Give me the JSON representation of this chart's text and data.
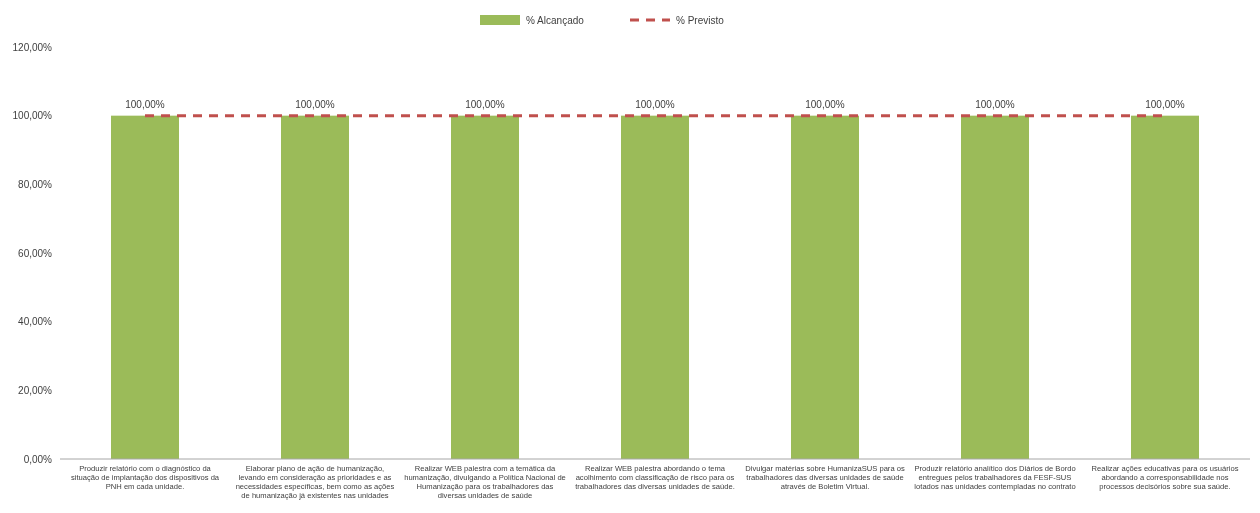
{
  "chart_data": {
    "type": "bar",
    "categories": [
      "Produzir relatório com o diagnóstico da situação de implantação dos dispositivos da PNH em cada unidade.",
      "Elaborar plano de ação de humanização, levando em consideração as prioridades e as necessidades específicas, bem como as ações de humanização já existentes nas unidades",
      "Realizar WEB palestra com a temática da humanização, divulgando a Política Nacional de Humanização para os trabalhadores das diversas unidades de saúde",
      "Realizar WEB palestra abordando o tema acolhimento com classificação de risco para os trabalhadores das diversas unidades de saúde.",
      "Divulgar matérias sobre HumanizaSUS para os trabalhadores das diversas unidades de saúde através de Boletim Virtual.",
      "Produzir relatório analítico dos Diários de Bordo entregues pelos trabalhadores da FESF-SUS lotados nas unidades contempladas no contrato",
      "Realizar ações educativas para os usuários abordando a corresponsabilidade nos processos decisórios sobre sua saúde."
    ],
    "series": [
      {
        "name": "% Alcançado",
        "color": "#9bbb59",
        "values": [
          100,
          100,
          100,
          100,
          100,
          100,
          100
        ],
        "value_labels": [
          "100,00%",
          "100,00%",
          "100,00%",
          "100,00%",
          "100,00%",
          "100,00%",
          "100,00%"
        ]
      },
      {
        "name": "% Previsto",
        "type": "line",
        "color": "#c0504d",
        "line_style": "dashed",
        "values": [
          100,
          100,
          100,
          100,
          100,
          100,
          100
        ]
      }
    ],
    "ylim": [
      0,
      120
    ],
    "yticks": [
      {
        "value": 0,
        "label": "0,00%"
      },
      {
        "value": 20,
        "label": "20,00%"
      },
      {
        "value": 40,
        "label": "40,00%"
      },
      {
        "value": 60,
        "label": "60,00%"
      },
      {
        "value": 80,
        "label": "80,00%"
      },
      {
        "value": 100,
        "label": "100,00%"
      },
      {
        "value": 120,
        "label": "120,00%"
      }
    ],
    "grid": false,
    "legend": "top"
  }
}
